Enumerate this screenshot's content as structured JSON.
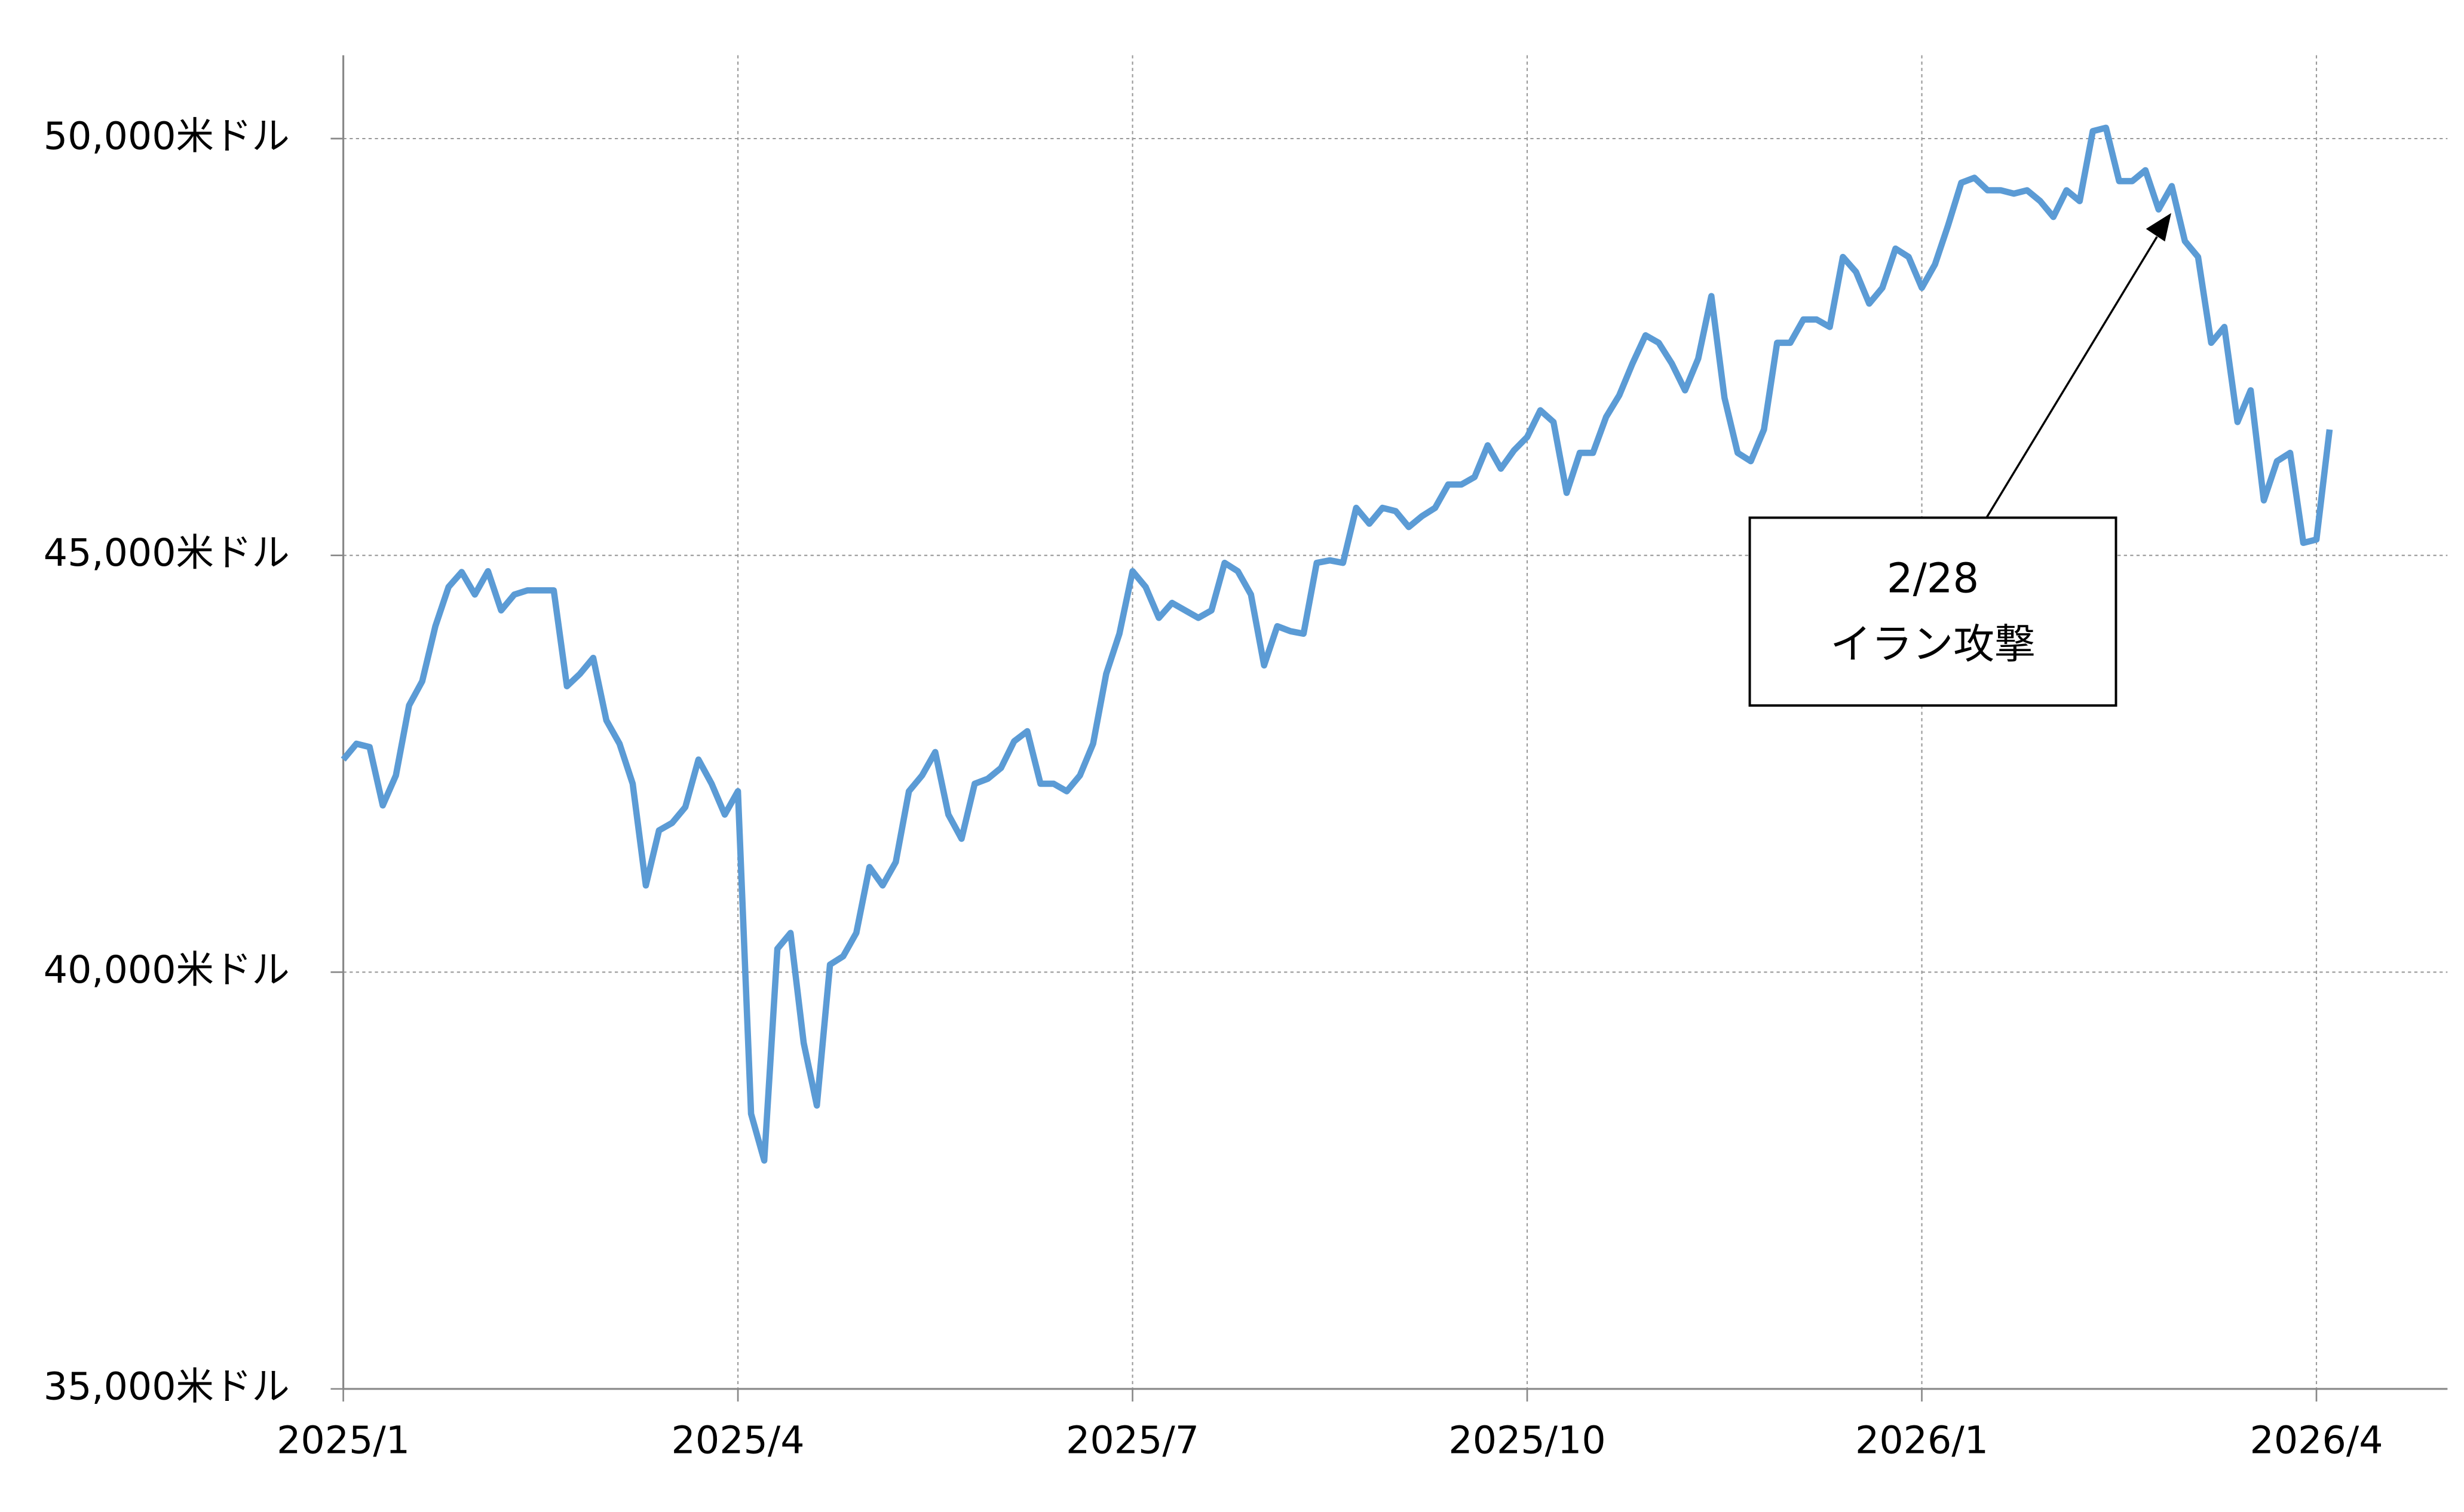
{
  "chart_data": {
    "type": "line",
    "categories": [
      "2025/1",
      null,
      null,
      null,
      null,
      null,
      null,
      null,
      null,
      null,
      null,
      null,
      null,
      null,
      null,
      null,
      null,
      null,
      null,
      null,
      null,
      null,
      null,
      null,
      null,
      null,
      null,
      null,
      null,
      null,
      "2025/4",
      null,
      null,
      null,
      null,
      null,
      null,
      null,
      null,
      null,
      null,
      null,
      null,
      null,
      null,
      null,
      null,
      null,
      null,
      null,
      null,
      null,
      null,
      null,
      null,
      null,
      null,
      null,
      null,
      null,
      "2025/7",
      null,
      null,
      null,
      null,
      null,
      null,
      null,
      null,
      null,
      null,
      null,
      null,
      null,
      null,
      null,
      null,
      null,
      null,
      null,
      null,
      null,
      null,
      null,
      null,
      null,
      null,
      null,
      null,
      null,
      "2025/10",
      null,
      null,
      null,
      null,
      null,
      null,
      null,
      null,
      null,
      null,
      null,
      null,
      null,
      null,
      null,
      null,
      null,
      null,
      null,
      null,
      null,
      null,
      null,
      null,
      null,
      null,
      null,
      null,
      null,
      "2026/1",
      null,
      null,
      null,
      null,
      null,
      null,
      null,
      null,
      null,
      null,
      null,
      null,
      null,
      null,
      null,
      null,
      null,
      null,
      null,
      null,
      null,
      null,
      null,
      null,
      null,
      null,
      null,
      null,
      null,
      "2026/4",
      null
    ],
    "series": [
      {
        "color": "#5b9bd5",
        "values": [
          42550,
          42740,
          42700,
          42000,
          42360,
          43200,
          43490,
          44150,
          44620,
          44800,
          44530,
          44810,
          44340,
          44530,
          44580,
          44580,
          44580,
          43430,
          43580,
          43770,
          43020,
          42740,
          42260,
          41040,
          41700,
          41790,
          41980,
          42550,
          42260,
          41890,
          42170,
          38300,
          37740,
          40280,
          40470,
          39150,
          38400,
          40090,
          40190,
          40470,
          41260,
          41040,
          41320,
          42170,
          42360,
          42640,
          41890,
          41600,
          42260,
          42320,
          42450,
          42770,
          42890,
          42260,
          42260,
          42170,
          42360,
          42740,
          43580,
          44060,
          44810,
          44620,
          44250,
          44430,
          44340,
          44250,
          44340,
          44910,
          44810,
          44530,
          43680,
          44150,
          44090,
          44060,
          44910,
          44940,
          44910,
          45570,
          45380,
          45570,
          45530,
          45340,
          45470,
          45570,
          45850,
          45850,
          45940,
          46320,
          46040,
          46260,
          46420,
          46740,
          46600,
          45750,
          46230,
          46230,
          46660,
          46920,
          47300,
          47640,
          47550,
          47300,
          46980,
          47360,
          48110,
          46890,
          46230,
          46130,
          46510,
          47550,
          47550,
          47830,
          47830,
          47740,
          48580,
          48400,
          48020,
          48210,
          48680,
          48580,
          48210,
          48490,
          48960,
          49470,
          49530,
          49380,
          49380,
          49340,
          49380,
          49250,
          49060,
          49380,
          49250,
          50090,
          50130,
          49490,
          49490,
          49620,
          49150,
          49430,
          48770,
          48580,
          47550,
          47740,
          46600,
          46980,
          45660,
          46130,
          46230,
          45150,
          45190,
          46510
        ]
      }
    ],
    "ylim": [
      35000,
      51000
    ],
    "yticks": [
      {
        "value": 35000,
        "label": "35,000米ドル"
      },
      {
        "value": 40000,
        "label": "40,000米ドル"
      },
      {
        "value": 45000,
        "label": "45,000米ドル"
      },
      {
        "value": 50000,
        "label": "50,000米ドル"
      }
    ],
    "grid": true,
    "annotation": [
      "2/28",
      "イラン攻撃"
    ]
  }
}
